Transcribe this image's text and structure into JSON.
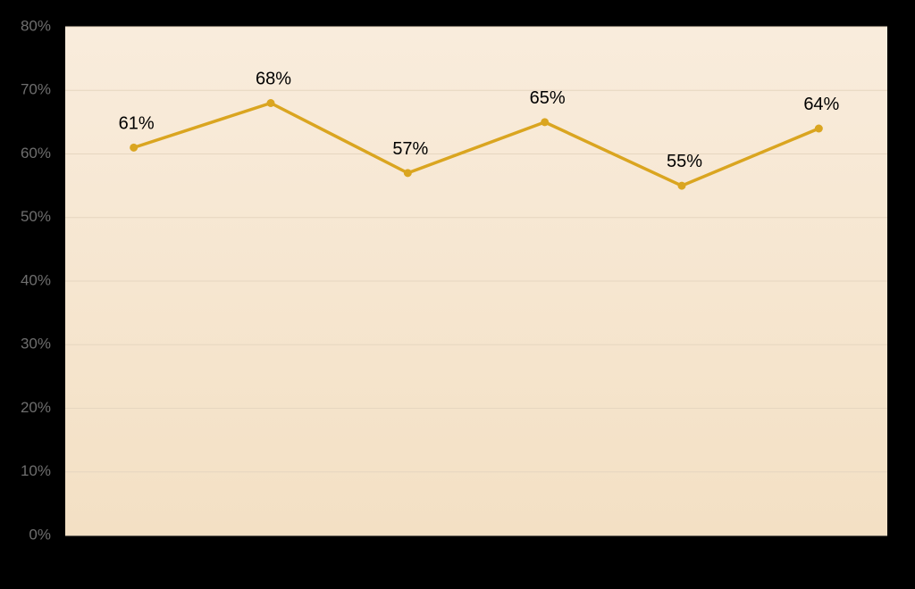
{
  "chart_data": {
    "type": "line",
    "categories": [
      null,
      null,
      null,
      null,
      null,
      null
    ],
    "values": [
      61,
      68,
      57,
      65,
      55,
      64
    ],
    "value_labels": [
      "61%",
      "68%",
      "57%",
      "65%",
      "55%",
      "64%"
    ],
    "color": "#daa520",
    "ylim": [
      0,
      80
    ],
    "yticks": [
      {
        "value": 0,
        "label": "0%"
      },
      {
        "value": 10,
        "label": "10%"
      },
      {
        "value": 20,
        "label": "20%"
      },
      {
        "value": 30,
        "label": "30%"
      },
      {
        "value": 40,
        "label": "40%"
      },
      {
        "value": 50,
        "label": "50%"
      },
      {
        "value": 60,
        "label": "60%"
      },
      {
        "value": 70,
        "label": "70%"
      },
      {
        "value": 80,
        "label": "80%"
      }
    ],
    "grid": true
  }
}
